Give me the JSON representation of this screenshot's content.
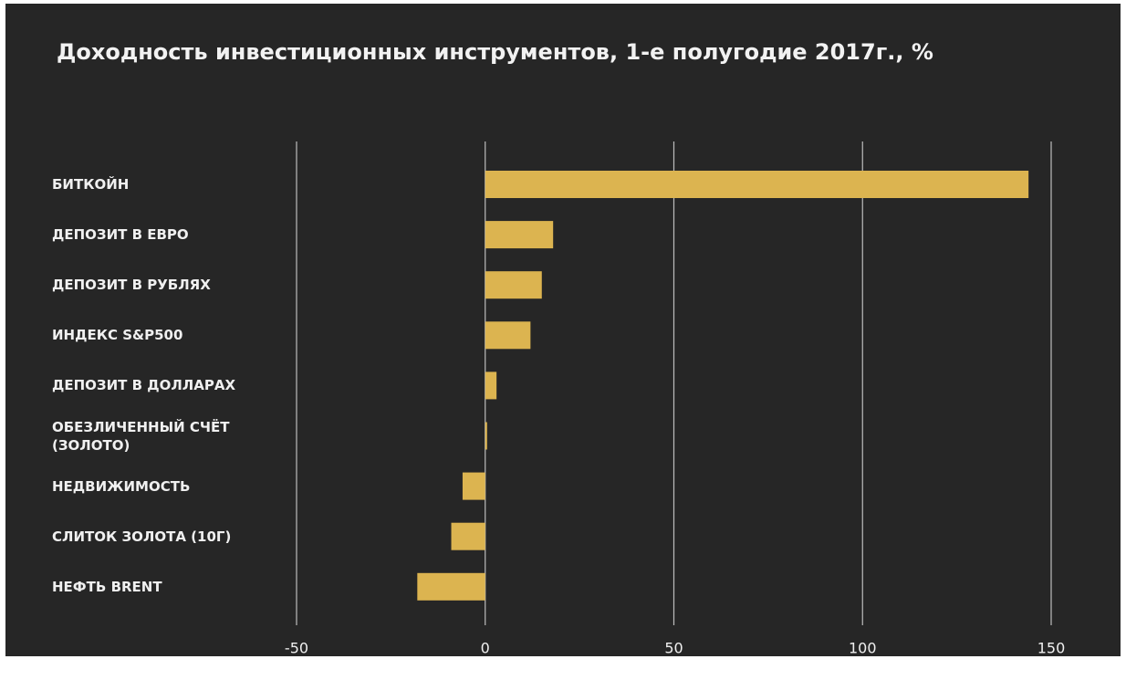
{
  "chart_data": {
    "type": "barh",
    "title": "Доходность инвестиционных инструментов, 1-е полугодие 2017г., %",
    "categories": [
      "БИТКОЙН",
      "ДЕПОЗИТ В ЕВРО",
      "ДЕПОЗИТ В РУБЛЯХ",
      "ИНДЕКС S&P500",
      "ДЕПОЗИТ В ДОЛЛАРАХ",
      "ОБЕЗЛИЧЕННЫЙ СЧЁТ (ЗОЛОТО)",
      "НЕДВИЖИМОСТЬ",
      "СЛИТОК ЗОЛОТА (10Г)",
      "НЕФТЬ BRENT"
    ],
    "values": [
      144,
      18,
      15,
      12,
      3,
      0.5,
      -6,
      -9,
      -18
    ],
    "color": "#dcb450",
    "xlim": [
      -50,
      150
    ],
    "xticks": [
      -50,
      0,
      50,
      100,
      150
    ],
    "grid": true
  }
}
